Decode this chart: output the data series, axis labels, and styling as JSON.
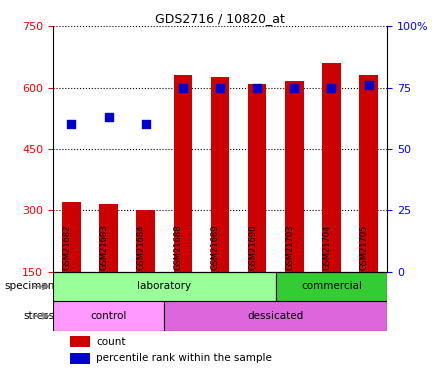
{
  "title": "GDS2716 / 10820_at",
  "samples": [
    "GSM21682",
    "GSM21683",
    "GSM21684",
    "GSM21688",
    "GSM21689",
    "GSM21690",
    "GSM21703",
    "GSM21704",
    "GSM21705"
  ],
  "counts": [
    320,
    315,
    300,
    630,
    625,
    610,
    615,
    660,
    630
  ],
  "percentile_ranks": [
    60,
    63,
    60,
    75,
    75,
    75,
    75,
    75,
    76
  ],
  "ylim_left": [
    150,
    750
  ],
  "ylim_right": [
    0,
    100
  ],
  "yticks_left": [
    150,
    300,
    450,
    600,
    750
  ],
  "yticks_right": [
    0,
    25,
    50,
    75,
    100
  ],
  "ytick_labels_left": [
    "150",
    "300",
    "450",
    "600",
    "750"
  ],
  "ytick_labels_right": [
    "0",
    "25",
    "50",
    "75",
    "100%"
  ],
  "bar_color": "#cc0000",
  "dot_color": "#0000cc",
  "bar_width": 0.5,
  "specimen_groups": [
    {
      "label": "laboratory",
      "start": 0,
      "end": 6,
      "color": "#99ff99"
    },
    {
      "label": "commercial",
      "start": 6,
      "end": 9,
      "color": "#33cc33"
    }
  ],
  "stress_groups": [
    {
      "label": "control",
      "start": 0,
      "end": 3,
      "color": "#ff99ff"
    },
    {
      "label": "dessicated",
      "start": 3,
      "end": 9,
      "color": "#dd66dd"
    }
  ],
  "legend_count_color": "#cc0000",
  "legend_dot_color": "#0000cc",
  "tick_bg_color": "#cccccc",
  "grid_color": "black",
  "grid_linestyle": "dotted"
}
